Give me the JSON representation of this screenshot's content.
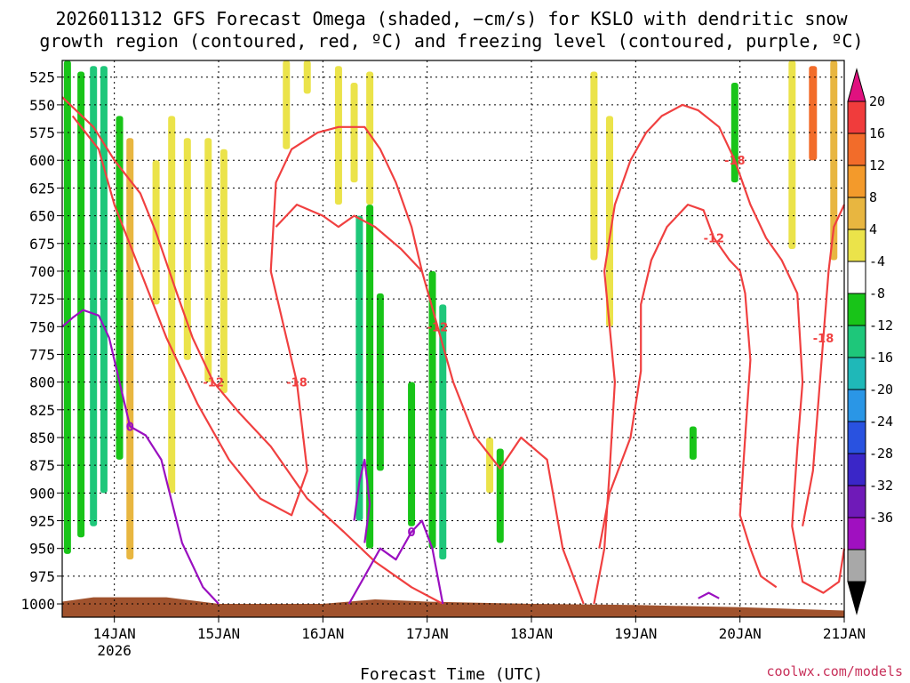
{
  "title_line1": "2026011312 GFS Forecast Omega (shaded, −cm/s) for KSLO with dendritic snow",
  "title_line2": "growth region (contoured, red, ºC) and freezing level (contoured, purple, ºC)",
  "credit": "coolwx.com/models",
  "chart_data": {
    "type": "heatmap",
    "xlabel": "Forecast Time (UTC)",
    "ylabel": "",
    "x_ticks": [
      "14JAN",
      "15JAN",
      "16JAN",
      "17JAN",
      "18JAN",
      "19JAN",
      "20JAN",
      "21JAN"
    ],
    "x_tick_sublabel": "2026",
    "x_range_days": [
      13.5,
      21.0
    ],
    "y_ticks": [
      525,
      550,
      575,
      600,
      625,
      650,
      675,
      700,
      725,
      750,
      775,
      800,
      825,
      850,
      875,
      900,
      925,
      950,
      975,
      1000
    ],
    "y_range_hpa": [
      510,
      1012
    ],
    "grid": true,
    "colorbar": {
      "labels": [
        "20",
        "16",
        "12",
        "8",
        "4",
        "-4",
        "-8",
        "-12",
        "-16",
        "-20",
        "-24",
        "-28",
        "-32",
        "-36"
      ],
      "colors": [
        "#e0117f",
        "#f03c3c",
        "#f26c2a",
        "#f39a2b",
        "#e8b640",
        "#ebe34a",
        "#ffffff",
        "#18c418",
        "#1ec77a",
        "#1fb8b8",
        "#2a96e6",
        "#2952e0",
        "#3a26c8",
        "#6f1ab8",
        "#a010c0",
        "#a8a8a8",
        "#000000"
      ]
    },
    "omega_shading": [
      {
        "t": 13.55,
        "p_top": 510,
        "p_bot": 955,
        "value": -6
      },
      {
        "t": 13.68,
        "p_top": 520,
        "p_bot": 940,
        "value": -6
      },
      {
        "t": 13.8,
        "p_top": 515,
        "p_bot": 930,
        "value": -10
      },
      {
        "t": 13.9,
        "p_top": 515,
        "p_bot": 900,
        "value": -9
      },
      {
        "t": 14.05,
        "p_top": 560,
        "p_bot": 870,
        "value": -7
      },
      {
        "t": 14.15,
        "p_top": 580,
        "p_bot": 960,
        "value": 10
      },
      {
        "t": 14.4,
        "p_top": 600,
        "p_bot": 730,
        "value": 5
      },
      {
        "t": 14.55,
        "p_top": 560,
        "p_bot": 900,
        "value": 5
      },
      {
        "t": 14.7,
        "p_top": 580,
        "p_bot": 780,
        "value": 6
      },
      {
        "t": 14.9,
        "p_top": 580,
        "p_bot": 800,
        "value": 6
      },
      {
        "t": 15.05,
        "p_top": 590,
        "p_bot": 810,
        "value": 5
      },
      {
        "t": 15.65,
        "p_top": 510,
        "p_bot": 590,
        "value": 5
      },
      {
        "t": 15.85,
        "p_top": 510,
        "p_bot": 540,
        "value": 5
      },
      {
        "t": 16.15,
        "p_top": 515,
        "p_bot": 640,
        "value": 5
      },
      {
        "t": 16.3,
        "p_top": 530,
        "p_bot": 620,
        "value": 5
      },
      {
        "t": 16.45,
        "p_top": 520,
        "p_bot": 640,
        "value": 6
      },
      {
        "t": 16.35,
        "p_top": 650,
        "p_bot": 925,
        "value": -8
      },
      {
        "t": 16.45,
        "p_top": 640,
        "p_bot": 950,
        "value": -7
      },
      {
        "t": 16.55,
        "p_top": 720,
        "p_bot": 880,
        "value": -6
      },
      {
        "t": 16.85,
        "p_top": 800,
        "p_bot": 930,
        "value": -6
      },
      {
        "t": 17.05,
        "p_top": 700,
        "p_bot": 950,
        "value": -7
      },
      {
        "t": 17.15,
        "p_top": 730,
        "p_bot": 960,
        "value": -10
      },
      {
        "t": 17.6,
        "p_top": 850,
        "p_bot": 900,
        "value": 5
      },
      {
        "t": 17.7,
        "p_top": 860,
        "p_bot": 945,
        "value": -6
      },
      {
        "t": 18.6,
        "p_top": 520,
        "p_bot": 690,
        "value": 5
      },
      {
        "t": 18.75,
        "p_top": 560,
        "p_bot": 750,
        "value": 5
      },
      {
        "t": 19.55,
        "p_top": 840,
        "p_bot": 870,
        "value": -6
      },
      {
        "t": 19.95,
        "p_top": 530,
        "p_bot": 620,
        "value": -6
      },
      {
        "t": 20.5,
        "p_top": 510,
        "p_bot": 680,
        "value": 6
      },
      {
        "t": 20.7,
        "p_top": 515,
        "p_bot": 600,
        "value": 13
      },
      {
        "t": 20.9,
        "p_top": 510,
        "p_bot": 690,
        "value": 8
      }
    ],
    "dendritic_contours": [
      {
        "label": "-12",
        "points": [
          [
            13.5,
            543
          ],
          [
            13.8,
            570
          ],
          [
            14.0,
            600
          ],
          [
            14.25,
            630
          ],
          [
            14.4,
            665
          ],
          [
            14.6,
            720
          ],
          [
            14.75,
            760
          ],
          [
            14.95,
            800
          ],
          [
            15.2,
            828
          ],
          [
            15.5,
            858
          ],
          [
            15.85,
            905
          ],
          [
            16.2,
            935
          ],
          [
            16.5,
            962
          ],
          [
            16.85,
            985
          ],
          [
            17.15,
            1000
          ]
        ]
      },
      {
        "label": "-12",
        "points": [
          [
            15.55,
            660
          ],
          [
            15.75,
            640
          ],
          [
            16.0,
            650
          ],
          [
            16.15,
            660
          ],
          [
            16.3,
            650
          ],
          [
            16.5,
            660
          ],
          [
            16.75,
            680
          ],
          [
            16.95,
            700
          ],
          [
            17.1,
            750
          ],
          [
            17.25,
            800
          ],
          [
            17.45,
            848
          ],
          [
            17.7,
            878
          ],
          [
            17.9,
            850
          ],
          [
            18.15,
            870
          ],
          [
            18.3,
            950
          ],
          [
            18.5,
            1000
          ]
        ]
      },
      {
        "label": "-18",
        "points": [
          [
            13.6,
            560
          ],
          [
            13.85,
            590
          ],
          [
            14.0,
            640
          ],
          [
            14.25,
            700
          ],
          [
            14.5,
            760
          ],
          [
            14.8,
            820
          ],
          [
            15.1,
            870
          ],
          [
            15.4,
            905
          ],
          [
            15.7,
            920
          ],
          [
            15.85,
            880
          ],
          [
            15.75,
            800
          ],
          [
            15.5,
            700
          ],
          [
            15.55,
            620
          ],
          [
            15.7,
            590
          ],
          [
            15.95,
            575
          ],
          [
            16.15,
            570
          ],
          [
            16.4,
            570
          ],
          [
            16.55,
            590
          ],
          [
            16.7,
            620
          ],
          [
            16.85,
            660
          ],
          [
            16.95,
            700
          ]
        ]
      },
      {
        "label": "-12",
        "points": [
          [
            18.65,
            950
          ],
          [
            18.75,
            900
          ],
          [
            18.95,
            850
          ],
          [
            19.05,
            790
          ],
          [
            19.05,
            730
          ],
          [
            19.15,
            690
          ],
          [
            19.3,
            660
          ],
          [
            19.5,
            640
          ],
          [
            19.65,
            645
          ],
          [
            19.75,
            670
          ],
          [
            19.9,
            690
          ],
          [
            20.0,
            700
          ],
          [
            20.05,
            720
          ],
          [
            20.1,
            780
          ],
          [
            20.05,
            850
          ],
          [
            20.0,
            920
          ],
          [
            20.1,
            950
          ],
          [
            20.2,
            975
          ],
          [
            20.35,
            985
          ]
        ]
      },
      {
        "label": "-18",
        "points": [
          [
            18.6,
            1000
          ],
          [
            18.7,
            950
          ],
          [
            18.75,
            880
          ],
          [
            18.8,
            800
          ],
          [
            18.7,
            700
          ],
          [
            18.8,
            640
          ],
          [
            18.95,
            600
          ],
          [
            19.1,
            575
          ],
          [
            19.25,
            560
          ],
          [
            19.45,
            550
          ],
          [
            19.6,
            555
          ],
          [
            19.8,
            570
          ],
          [
            19.95,
            600
          ],
          [
            20.1,
            640
          ],
          [
            20.25,
            670
          ],
          [
            20.4,
            690
          ],
          [
            20.55,
            720
          ],
          [
            20.6,
            800
          ],
          [
            20.55,
            860
          ],
          [
            20.5,
            930
          ],
          [
            20.6,
            980
          ],
          [
            20.8,
            990
          ],
          [
            20.95,
            980
          ],
          [
            21.0,
            950
          ]
        ]
      },
      {
        "label": "-18",
        "points": [
          [
            20.6,
            930
          ],
          [
            20.7,
            880
          ],
          [
            20.75,
            820
          ],
          [
            20.8,
            760
          ],
          [
            20.85,
            700
          ],
          [
            20.9,
            660
          ],
          [
            21.0,
            640
          ]
        ]
      }
    ],
    "freezing_level": [
      {
        "label": "0",
        "points": [
          [
            13.5,
            750
          ],
          [
            13.6,
            742
          ],
          [
            13.7,
            735
          ],
          [
            13.85,
            740
          ],
          [
            13.95,
            760
          ],
          [
            14.05,
            800
          ],
          [
            14.15,
            840
          ],
          [
            14.3,
            848
          ],
          [
            14.45,
            870
          ],
          [
            14.65,
            945
          ],
          [
            14.85,
            985
          ],
          [
            15.0,
            1000
          ]
        ]
      },
      {
        "label": "0",
        "points": [
          [
            16.25,
            1000
          ],
          [
            16.4,
            975
          ],
          [
            16.55,
            950
          ],
          [
            16.7,
            960
          ],
          [
            16.85,
            935
          ],
          [
            16.95,
            925
          ],
          [
            17.05,
            950
          ],
          [
            17.15,
            1000
          ]
        ]
      },
      {
        "label": "",
        "points": [
          [
            16.3,
            925
          ],
          [
            16.35,
            890
          ],
          [
            16.4,
            870
          ],
          [
            16.45,
            910
          ],
          [
            16.4,
            945
          ]
        ]
      },
      {
        "label": "",
        "points": [
          [
            19.6,
            995
          ],
          [
            19.7,
            990
          ],
          [
            19.8,
            995
          ]
        ]
      }
    ],
    "terrain_surface": [
      [
        13.5,
        998
      ],
      [
        13.8,
        994
      ],
      [
        14.5,
        994
      ],
      [
        15.0,
        1000
      ],
      [
        16.0,
        1000
      ],
      [
        16.5,
        996
      ],
      [
        17.0,
        998
      ],
      [
        18.0,
        1000
      ],
      [
        19.0,
        1001
      ],
      [
        20.0,
        1003
      ],
      [
        21.0,
        1006
      ]
    ]
  }
}
